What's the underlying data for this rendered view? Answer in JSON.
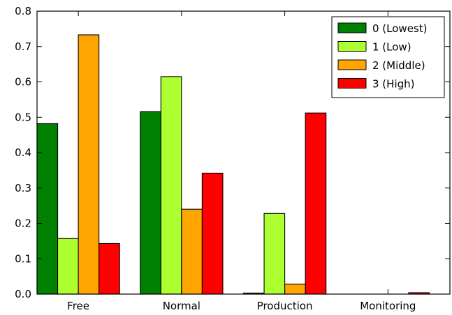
{
  "chart_data": {
    "type": "bar",
    "categories": [
      "Free",
      "Normal",
      "Production",
      "Monitoring"
    ],
    "series": [
      {
        "name": "0 (Lowest)",
        "color": "#008000",
        "values": [
          0.482,
          0.516,
          0.003,
          0.0
        ]
      },
      {
        "name": "1 (Low)",
        "color": "#adff2f",
        "values": [
          0.157,
          0.615,
          0.228,
          0.0
        ]
      },
      {
        "name": "2 (Middle)",
        "color": "#ffa500",
        "values": [
          0.733,
          0.24,
          0.028,
          0.0
        ]
      },
      {
        "name": "3 (High)",
        "color": "#ff0000",
        "values": [
          0.143,
          0.342,
          0.512,
          0.004
        ]
      }
    ],
    "ylim": [
      0.0,
      0.8
    ],
    "yticks": [
      "0.0",
      "0.1",
      "0.2",
      "0.3",
      "0.4",
      "0.5",
      "0.6",
      "0.7",
      "0.8"
    ],
    "grid": false,
    "legend": {
      "placement": "top-right"
    },
    "title": "",
    "xlabel": "",
    "ylabel": ""
  }
}
